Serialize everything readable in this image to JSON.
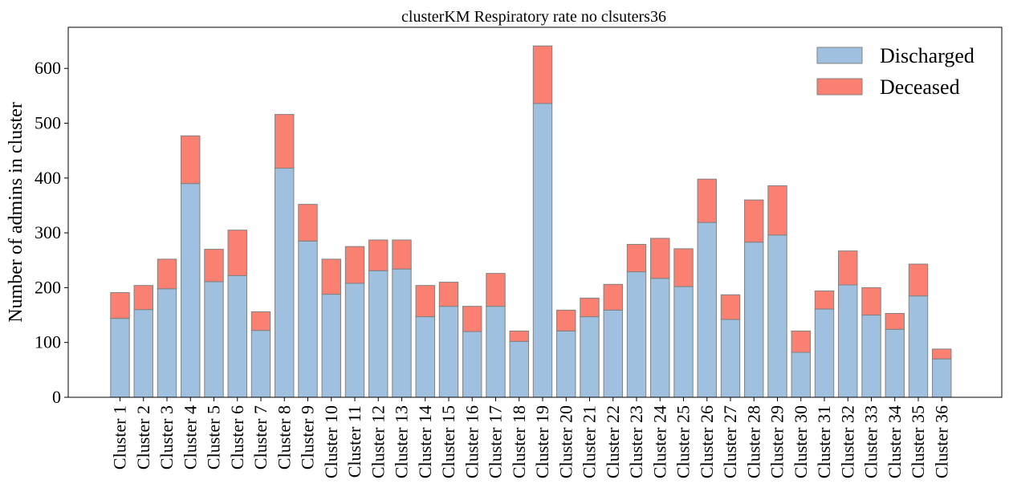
{
  "chart_data": {
    "type": "bar",
    "stacked": true,
    "title": "clusterKM Respiratory rate no clsuters36",
    "xlabel": "",
    "ylabel": "Number of admins in cluster",
    "ylim": [
      0,
      675
    ],
    "yticks": [
      0,
      100,
      200,
      300,
      400,
      500,
      600
    ],
    "grid": false,
    "legend_position": "top-right",
    "categories": [
      "Cluster 1",
      "Cluster 2",
      "Cluster 3",
      "Cluster 4",
      "Cluster 5",
      "Cluster 6",
      "Cluster 7",
      "Cluster 8",
      "Cluster 9",
      "Cluster 10",
      "Cluster 11",
      "Cluster 12",
      "Cluster 13",
      "Cluster 14",
      "Cluster 15",
      "Cluster 16",
      "Cluster 17",
      "Cluster 18",
      "Cluster 19",
      "Cluster 20",
      "Cluster 21",
      "Cluster 22",
      "Cluster 23",
      "Cluster 24",
      "Cluster 25",
      "Cluster 26",
      "Cluster 27",
      "Cluster 28",
      "Cluster 29",
      "Cluster 30",
      "Cluster 31",
      "Cluster 32",
      "Cluster 33",
      "Cluster 34",
      "Cluster 35",
      "Cluster 36"
    ],
    "series": [
      {
        "name": "Discharged",
        "color": "#9fc0df",
        "values": [
          144,
          160,
          198,
          390,
          211,
          222,
          122,
          418,
          285,
          188,
          208,
          231,
          234,
          147,
          166,
          120,
          166,
          102,
          536,
          121,
          147,
          159,
          229,
          217,
          202,
          319,
          142,
          283,
          296,
          82,
          161,
          205,
          150,
          124,
          185,
          70
        ]
      },
      {
        "name": "Deceased",
        "color": "#fa8072",
        "values": [
          47,
          44,
          54,
          87,
          59,
          83,
          34,
          98,
          67,
          64,
          67,
          56,
          53,
          57,
          44,
          46,
          60,
          19,
          105,
          38,
          34,
          47,
          50,
          73,
          69,
          79,
          45,
          77,
          90,
          39,
          33,
          62,
          50,
          29,
          58,
          18
        ]
      }
    ],
    "edge_color": "#808080"
  }
}
